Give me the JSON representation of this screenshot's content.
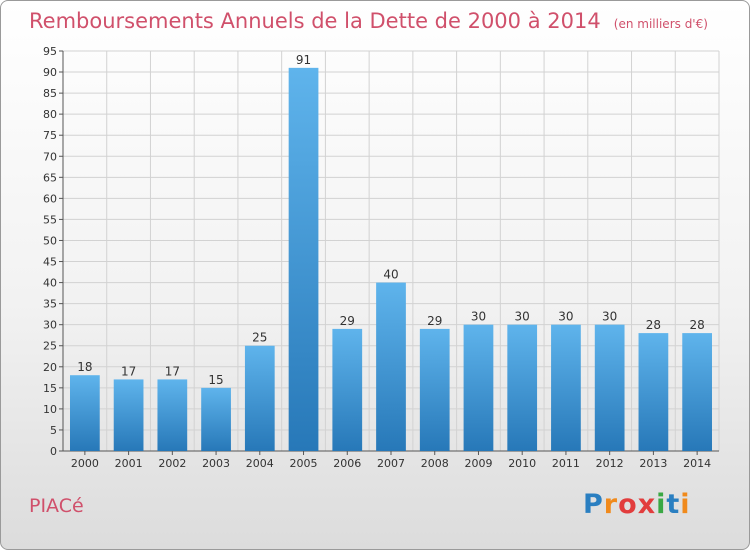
{
  "chart_data": {
    "type": "bar",
    "title": "Remboursements Annuels de la Dette de 2000 à 2014",
    "subtitle": "(en milliers d'€)",
    "categories": [
      "2000",
      "2001",
      "2002",
      "2003",
      "2004",
      "2005",
      "2006",
      "2007",
      "2008",
      "2009",
      "2010",
      "2011",
      "2012",
      "2013",
      "2014"
    ],
    "values": [
      18,
      17,
      17,
      15,
      25,
      91,
      29,
      40,
      29,
      30,
      30,
      30,
      30,
      28,
      28
    ],
    "ylim": [
      0,
      95
    ],
    "yticks": [
      0,
      5,
      10,
      15,
      20,
      25,
      30,
      35,
      40,
      45,
      50,
      55,
      60,
      65,
      70,
      75,
      80,
      85,
      90,
      95
    ],
    "grid": true,
    "xlabel": "",
    "ylabel": "",
    "colors": {
      "bar_light": "#5fb4ec",
      "bar_dark": "#2778b8",
      "title": "#d0506b"
    }
  },
  "footer": {
    "commune": "PIACé",
    "brand": "Proxiti",
    "brand_colors": [
      "#2a7fc1",
      "#f08a1c",
      "#e23d3d",
      "#e23d3d",
      "#3aa844",
      "#2a7fc1",
      "#f08a1c"
    ]
  }
}
